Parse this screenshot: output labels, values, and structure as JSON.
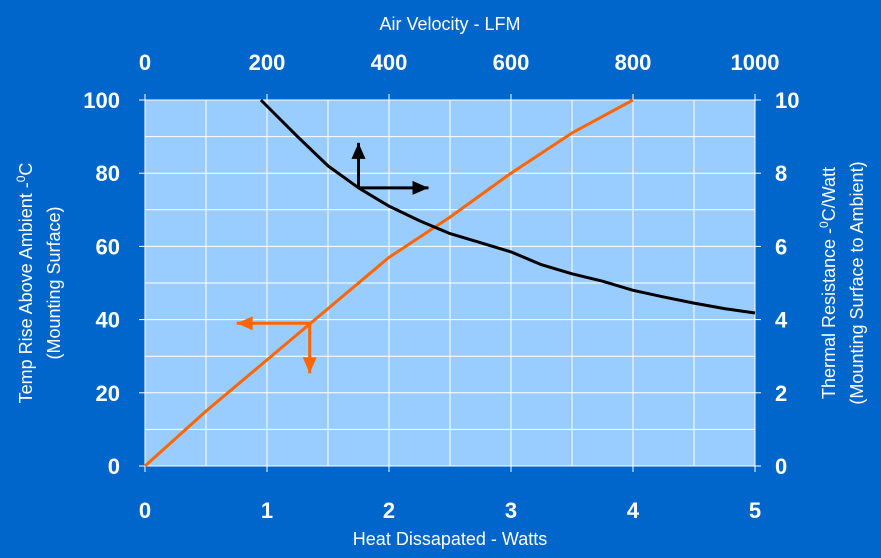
{
  "colors": {
    "frame": "#0066cc",
    "plot_area": "#99ccff",
    "grid": "#ffffff",
    "thermal_resistance_curve": "#000000",
    "temp_rise_curve": "#ff6600",
    "text": "#ffffff"
  },
  "chart_data": {
    "type": "line",
    "title": "",
    "xlabel": "Heat Dissapated - Watts",
    "x2label": "Air Velocity - LFM",
    "ylabel_line1": "Temp Rise Above Ambient -",
    "ylabel_sup": "0",
    "ylabel_tail": "C",
    "ylabel_line2": "(Mounting Surface)",
    "y2label_line1": "Thermal Resistance -",
    "y2label_sup": "0",
    "y2label_tail": "C/Watt",
    "y2label_line2": "(Mounting Surface to Ambient)",
    "xlim": [
      0,
      5
    ],
    "x2lim": [
      0,
      1000
    ],
    "ylim": [
      0,
      100
    ],
    "y2lim": [
      0,
      10
    ],
    "xticks": [
      "0",
      "1",
      "2",
      "3",
      "4",
      "5"
    ],
    "x2ticks": [
      "0",
      "200",
      "400",
      "600",
      "800",
      "1000"
    ],
    "yticks": [
      "0",
      "20",
      "40",
      "60",
      "80",
      "100"
    ],
    "y2ticks": [
      "0",
      "2",
      "4",
      "6",
      "8",
      "10"
    ],
    "grid": true,
    "series": [
      {
        "axes": "x-bottom / y-left",
        "color": "#ff6600",
        "x": [
          0,
          0.5,
          1,
          1.5,
          2,
          2.5,
          3,
          3.5,
          4
        ],
        "y": [
          0,
          15,
          29,
          43,
          57,
          68,
          80,
          91,
          100
        ]
      },
      {
        "axes": "x-top / y-right",
        "color": "#000000",
        "x": [
          190,
          250,
          300,
          350,
          400,
          450,
          500,
          550,
          600,
          650,
          700,
          750,
          800,
          850,
          900,
          950,
          1000
        ],
        "y": [
          10.0,
          9.0,
          8.2,
          7.6,
          7.1,
          6.7,
          6.35,
          6.1,
          5.85,
          5.5,
          5.25,
          5.05,
          4.8,
          4.62,
          4.45,
          4.3,
          4.18
        ]
      }
    ],
    "annotations": [
      {
        "type": "axis-indicator-arrows",
        "target": "right and top axes",
        "color": "#000000",
        "at": {
          "x2": 350,
          "y2": 7.6
        }
      },
      {
        "type": "axis-indicator-arrows",
        "target": "left and bottom axes",
        "color": "#ff6600",
        "at": {
          "x": 1.35,
          "y": 39
        }
      }
    ]
  }
}
